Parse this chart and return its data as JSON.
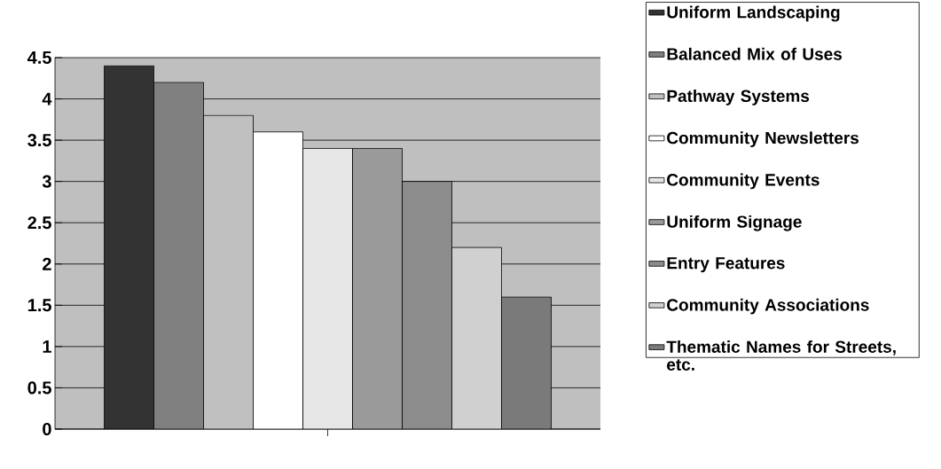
{
  "chart_data": {
    "type": "bar",
    "categories": [
      null
    ],
    "series": [
      {
        "name": "Uniform Landscaping",
        "color": "#333333",
        "values": [
          4.4
        ]
      },
      {
        "name": "Balanced Mix of Uses",
        "color": "#808080",
        "values": [
          4.2
        ]
      },
      {
        "name": "Pathway Systems",
        "color": "#c0c0c0",
        "values": [
          3.8
        ]
      },
      {
        "name": "Community Newsletters",
        "color": "#ffffff",
        "values": [
          3.6
        ]
      },
      {
        "name": "Community Events",
        "color": "#e6e6e6",
        "values": [
          3.4
        ]
      },
      {
        "name": "Uniform Signage",
        "color": "#9a9a9a",
        "values": [
          3.4
        ]
      },
      {
        "name": "Entry Features",
        "color": "#8c8c8c",
        "values": [
          3.0
        ]
      },
      {
        "name": "Community Associations",
        "color": "#d0d0d0",
        "values": [
          2.2
        ]
      },
      {
        "name": "Thematic Names for Streets, etc.",
        "color": "#7a7a7a",
        "values": [
          1.6
        ]
      }
    ],
    "ylim": [
      0,
      4.5
    ],
    "yticks": [
      0,
      0.5,
      1,
      1.5,
      2,
      2.5,
      3,
      3.5,
      4,
      4.5
    ],
    "grid": "y",
    "legend": "right"
  }
}
